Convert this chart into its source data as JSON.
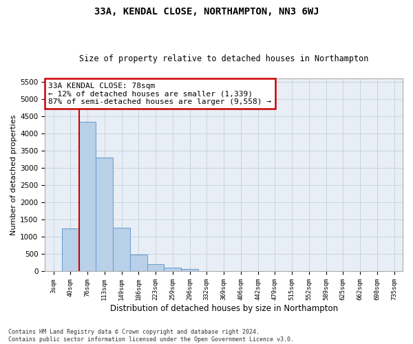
{
  "title": "33A, KENDAL CLOSE, NORTHAMPTON, NN3 6WJ",
  "subtitle": "Size of property relative to detached houses in Northampton",
  "xlabel": "Distribution of detached houses by size in Northampton",
  "ylabel": "Number of detached properties",
  "footnote1": "Contains HM Land Registry data © Crown copyright and database right 2024.",
  "footnote2": "Contains public sector information licensed under the Open Government Licence v3.0.",
  "bar_color": "#b8d0e8",
  "bar_edge_color": "#6699cc",
  "grid_color": "#c8d4e0",
  "vline_color": "#cc0000",
  "annotation_box_color": "#cc0000",
  "categories": [
    "3sqm",
    "40sqm",
    "76sqm",
    "113sqm",
    "149sqm",
    "186sqm",
    "223sqm",
    "259sqm",
    "296sqm",
    "332sqm",
    "369sqm",
    "406sqm",
    "442sqm",
    "479sqm",
    "515sqm",
    "552sqm",
    "589sqm",
    "625sqm",
    "662sqm",
    "698sqm",
    "735sqm"
  ],
  "values": [
    0,
    1250,
    4350,
    3300,
    1270,
    480,
    210,
    100,
    75,
    0,
    0,
    0,
    0,
    0,
    0,
    0,
    0,
    0,
    0,
    0,
    0
  ],
  "ylim": [
    0,
    5600
  ],
  "yticks": [
    0,
    500,
    1000,
    1500,
    2000,
    2500,
    3000,
    3500,
    4000,
    4500,
    5000,
    5500
  ],
  "property_label": "33A KENDAL CLOSE: 78sqm",
  "annotation_line1": "← 12% of detached houses are smaller (1,339)",
  "annotation_line2": "87% of semi-detached houses are larger (9,558) →",
  "vline_x_index": 2.0,
  "background_color": "#e8eef5"
}
